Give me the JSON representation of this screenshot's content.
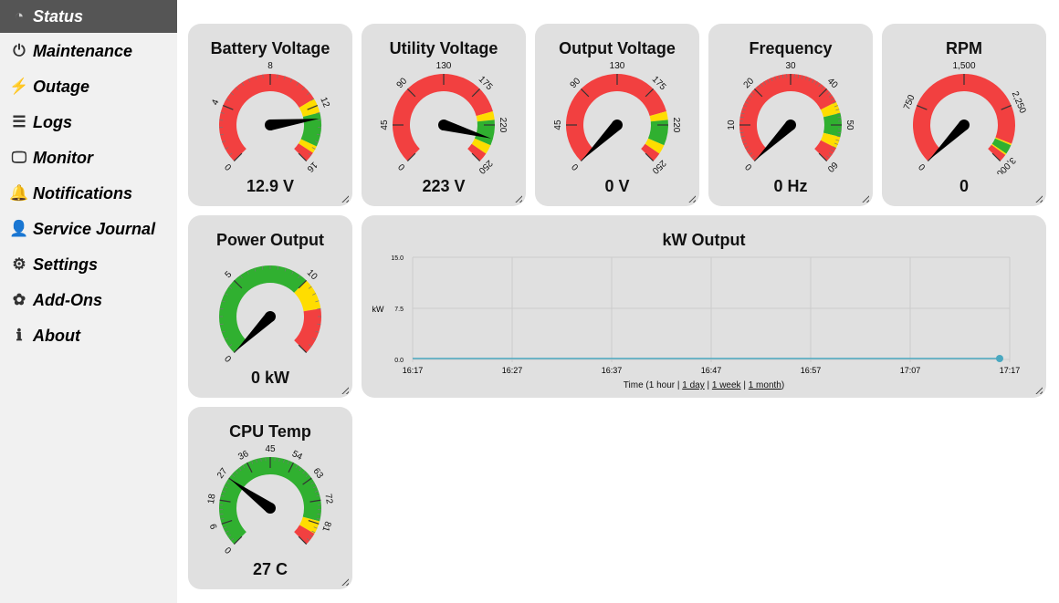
{
  "sidebar": {
    "items": [
      {
        "label": "Status",
        "icon": "gauge-icon",
        "active": true
      },
      {
        "label": "Maintenance",
        "icon": "power-icon"
      },
      {
        "label": "Outage",
        "icon": "lightning-icon"
      },
      {
        "label": "Logs",
        "icon": "list-icon"
      },
      {
        "label": "Monitor",
        "icon": "monitor-icon"
      },
      {
        "label": "Notifications",
        "icon": "bell-icon"
      },
      {
        "label": "Service Journal",
        "icon": "mechanic-icon"
      },
      {
        "label": "Settings",
        "icon": "gear-icon"
      },
      {
        "label": "Add-Ons",
        "icon": "puzzle-icon"
      },
      {
        "label": "About",
        "icon": "info-icon"
      }
    ]
  },
  "gauges": [
    {
      "title": "Battery Voltage",
      "display": "12.9 V",
      "value": 12.9,
      "min": 0,
      "max": 16,
      "labels": [
        "0",
        "4",
        "8",
        "12",
        "16"
      ],
      "minor": 32,
      "bands": [
        [
          0,
          11.5,
          "#f24040"
        ],
        [
          11.5,
          12.5,
          "#ffdd00"
        ],
        [
          12.5,
          14.8,
          "#30b030"
        ],
        [
          14.8,
          15.3,
          "#ffdd00"
        ],
        [
          15.3,
          16,
          "#f24040"
        ]
      ]
    },
    {
      "title": "Utility Voltage",
      "display": "223 V",
      "value": 223,
      "min": 0,
      "max": 250,
      "labels": [
        "0",
        "45",
        "90",
        "130",
        "175",
        "220",
        "250"
      ],
      "minor": 0,
      "bands": [
        [
          0,
          194,
          "#f24040"
        ],
        [
          194,
          203,
          "#ffdd00"
        ],
        [
          203,
          230,
          "#30b030"
        ],
        [
          230,
          240,
          "#ffdd00"
        ],
        [
          240,
          250,
          "#f24040"
        ]
      ]
    },
    {
      "title": "Output Voltage",
      "display": "0 V",
      "value": 0,
      "min": 0,
      "max": 250,
      "labels": [
        "0",
        "45",
        "90",
        "130",
        "175",
        "220",
        "250"
      ],
      "minor": 0,
      "bands": [
        [
          0,
          194,
          "#f24040"
        ],
        [
          194,
          203,
          "#ffdd00"
        ],
        [
          203,
          230,
          "#30b030"
        ],
        [
          230,
          240,
          "#ffdd00"
        ],
        [
          240,
          250,
          "#f24040"
        ]
      ]
    },
    {
      "title": "Frequency",
      "display": "0 Hz",
      "value": 0,
      "min": 0,
      "max": 60,
      "labels": [
        "0",
        "10",
        "20",
        "30",
        "40",
        "50",
        "60"
      ],
      "minor": 60,
      "bands": [
        [
          0,
          44,
          "#f24040"
        ],
        [
          44,
          47,
          "#ffdd00"
        ],
        [
          47,
          53,
          "#30b030"
        ],
        [
          53,
          56,
          "#ffdd00"
        ],
        [
          56,
          60,
          "#f24040"
        ]
      ]
    },
    {
      "title": "RPM",
      "display": "0",
      "value": 0,
      "min": 0,
      "max": 3000,
      "labels": [
        "0",
        "750",
        "1,500",
        "2,250",
        "3,000"
      ],
      "minor": 0,
      "bands": [
        [
          0,
          2740,
          "#f24040"
        ],
        [
          2740,
          2760,
          "#ffdd00"
        ],
        [
          2760,
          2880,
          "#30b030"
        ],
        [
          2880,
          2900,
          "#ffdd00"
        ],
        [
          2900,
          3000,
          "#f24040"
        ]
      ]
    },
    {
      "title": "Power Output",
      "display": "0 kW",
      "value": 0,
      "min": 0,
      "max": 15,
      "labels": [
        "0",
        "5",
        "10",
        ""
      ],
      "minor": 30,
      "bands": [
        [
          0,
          10,
          "#30b030"
        ],
        [
          10,
          12,
          "#ffdd00"
        ],
        [
          12,
          15,
          "#f24040"
        ]
      ]
    },
    {
      "title": "CPU Temp",
      "display": "27 C",
      "value": 27,
      "min": 0,
      "max": 90,
      "labels": [
        "0",
        "9",
        "18",
        "27",
        "36",
        "45",
        "54",
        "63",
        "72",
        "81",
        ""
      ],
      "minor": 50,
      "bands": [
        [
          0,
          80,
          "#30b030"
        ],
        [
          80,
          85,
          "#ffdd00"
        ],
        [
          85,
          90,
          "#f24040"
        ]
      ]
    }
  ],
  "chart_data": {
    "type": "line",
    "title": "kW Output",
    "ylabel": "kW",
    "ylim": [
      0,
      15
    ],
    "yticks": [
      "0.0",
      "7.5",
      "15.0"
    ],
    "xticks": [
      "16:17",
      "16:27",
      "16:37",
      "16:47",
      "16:57",
      "17:07",
      "17:17"
    ],
    "series": [
      {
        "name": "kW",
        "color": "#4aa8c0",
        "x": [
          0,
          60
        ],
        "values": [
          0,
          0
        ]
      }
    ],
    "grid": true
  },
  "footer": {
    "prefix": "Time (1 hour | ",
    "day": "1 day",
    "sep1": " | ",
    "week": "1 week",
    "sep2": " | ",
    "month": "1 month",
    "suffix": ")"
  }
}
